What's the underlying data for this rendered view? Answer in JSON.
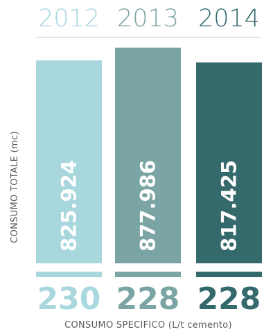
{
  "chart_data": {
    "type": "bar",
    "categories": [
      "2012",
      "2013",
      "2014"
    ],
    "series": [
      {
        "name": "CONSUMO TOTALE (mc)",
        "values": [
          825924,
          877986,
          817425
        ],
        "labels": [
          "825.924",
          "877.986",
          "817.425"
        ]
      },
      {
        "name": "CONSUMO SPECIFICO (L/t cemento)",
        "values": [
          230,
          228,
          228
        ],
        "labels": [
          "230",
          "228",
          "228"
        ]
      }
    ],
    "colors": [
      "#a9d7de",
      "#7ba5a4",
      "#356a6c"
    ],
    "ylabel": "CONSUMO TOTALE (mc)",
    "xlabel": "CONSUMO SPECIFICO (L/t cemento)",
    "ylim": [
      0,
      880000
    ],
    "grid": false,
    "legend": "none"
  }
}
